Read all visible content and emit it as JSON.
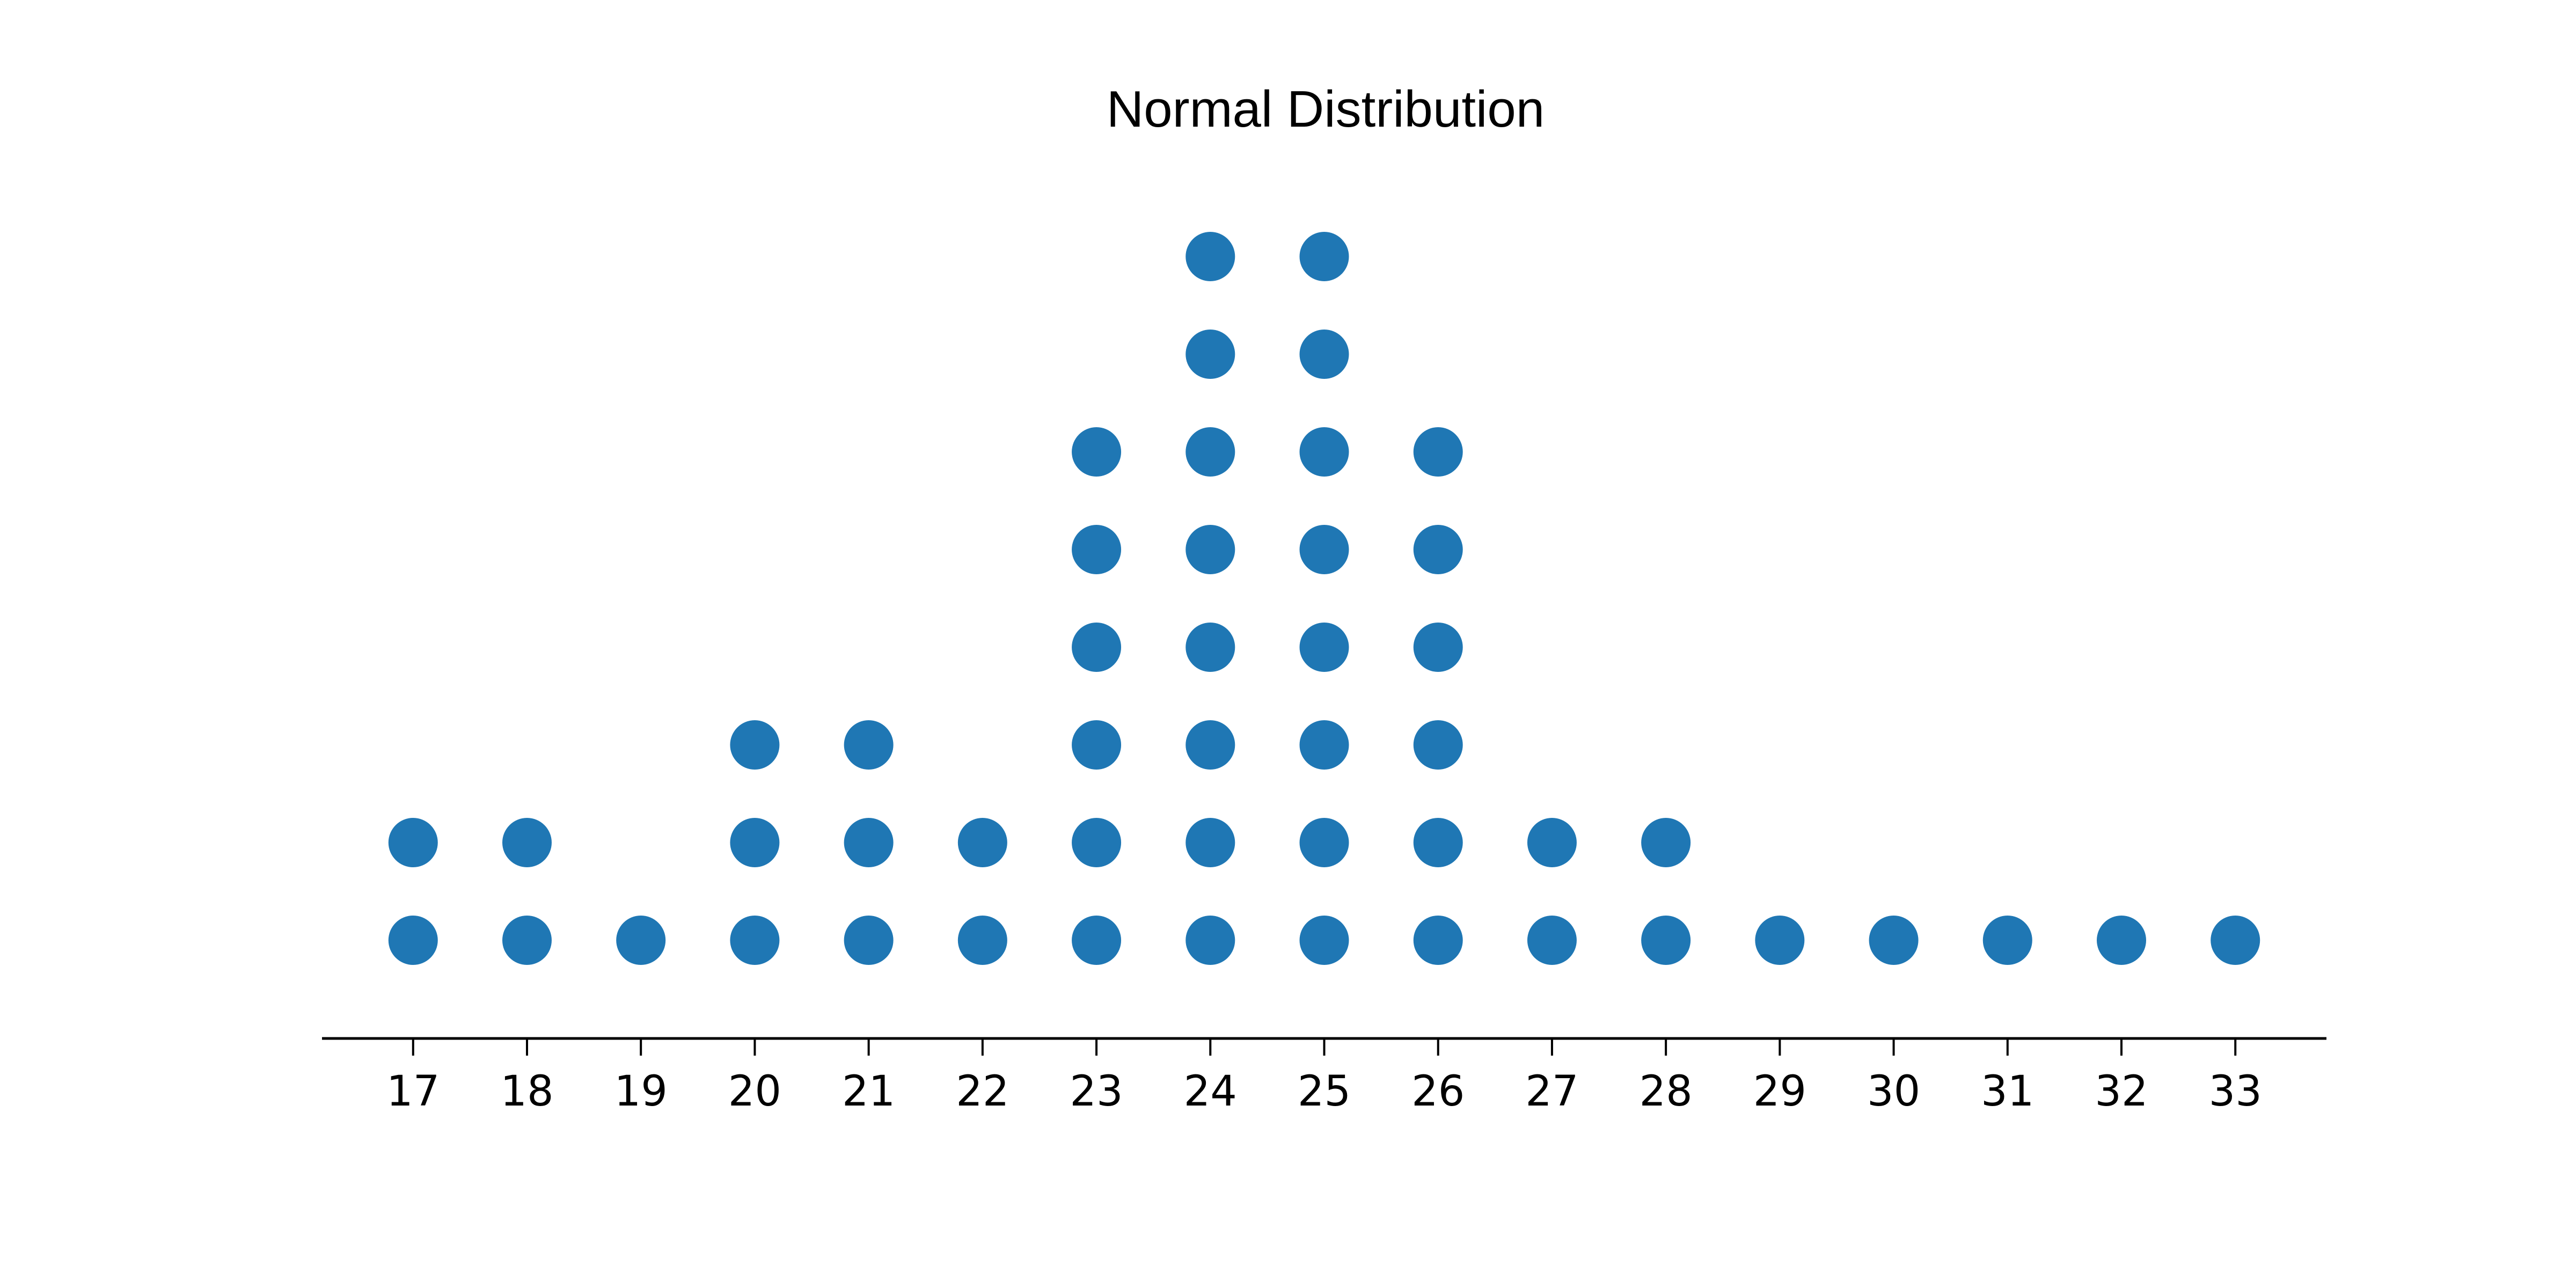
{
  "chart_data": {
    "type": "scatter",
    "title": "Normal Distribution",
    "xlabel": "",
    "ylabel": "",
    "xlim": [
      16.2,
      33.8
    ],
    "x_ticks": [
      17,
      18,
      19,
      20,
      21,
      22,
      23,
      24,
      25,
      26,
      27,
      28,
      29,
      30,
      31,
      32,
      33
    ],
    "categories": [
      "17",
      "18",
      "19",
      "20",
      "21",
      "22",
      "23",
      "24",
      "25",
      "26",
      "27",
      "28",
      "29",
      "30",
      "31",
      "32",
      "33"
    ],
    "counts": [
      2,
      2,
      1,
      3,
      3,
      2,
      6,
      8,
      8,
      6,
      2,
      2,
      1,
      1,
      1,
      1,
      1
    ],
    "y_axis_visible": false,
    "grid": false,
    "marker_color": "#1f77b4",
    "axis_color": "#000000"
  }
}
